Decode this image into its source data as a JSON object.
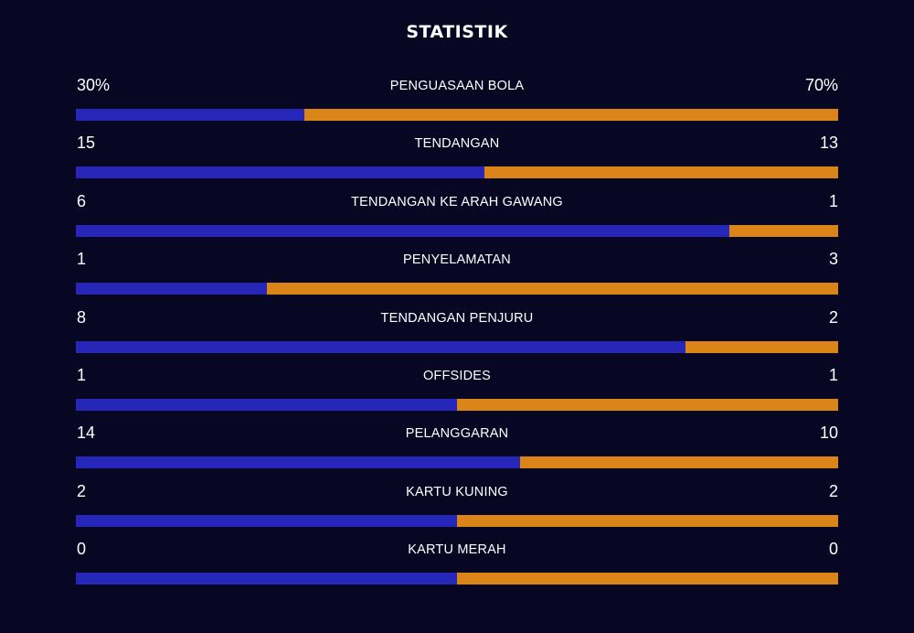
{
  "title": "STATISTIK",
  "colors": {
    "background": "#070724",
    "home": "#2626b8",
    "away": "#db8418"
  },
  "stats": [
    {
      "label": "PENGUASAAN BOLA",
      "home": "30%",
      "away": "70%",
      "home_share": 0.3
    },
    {
      "label": "TENDANGAN",
      "home": "15",
      "away": "13",
      "home_share": 0.5357
    },
    {
      "label": "TENDANGAN KE ARAH GAWANG",
      "home": "6",
      "away": "1",
      "home_share": 0.8571
    },
    {
      "label": "PENYELAMATAN",
      "home": "1",
      "away": "3",
      "home_share": 0.25
    },
    {
      "label": "TENDANGAN PENJURU",
      "home": "8",
      "away": "2",
      "home_share": 0.8
    },
    {
      "label": "OFFSIDES",
      "home": "1",
      "away": "1",
      "home_share": 0.5
    },
    {
      "label": "PELANGGARAN",
      "home": "14",
      "away": "10",
      "home_share": 0.5833
    },
    {
      "label": "KARTU KUNING",
      "home": "2",
      "away": "2",
      "home_share": 0.5
    },
    {
      "label": "KARTU MERAH",
      "home": "0",
      "away": "0",
      "home_share": 0.5
    }
  ]
}
